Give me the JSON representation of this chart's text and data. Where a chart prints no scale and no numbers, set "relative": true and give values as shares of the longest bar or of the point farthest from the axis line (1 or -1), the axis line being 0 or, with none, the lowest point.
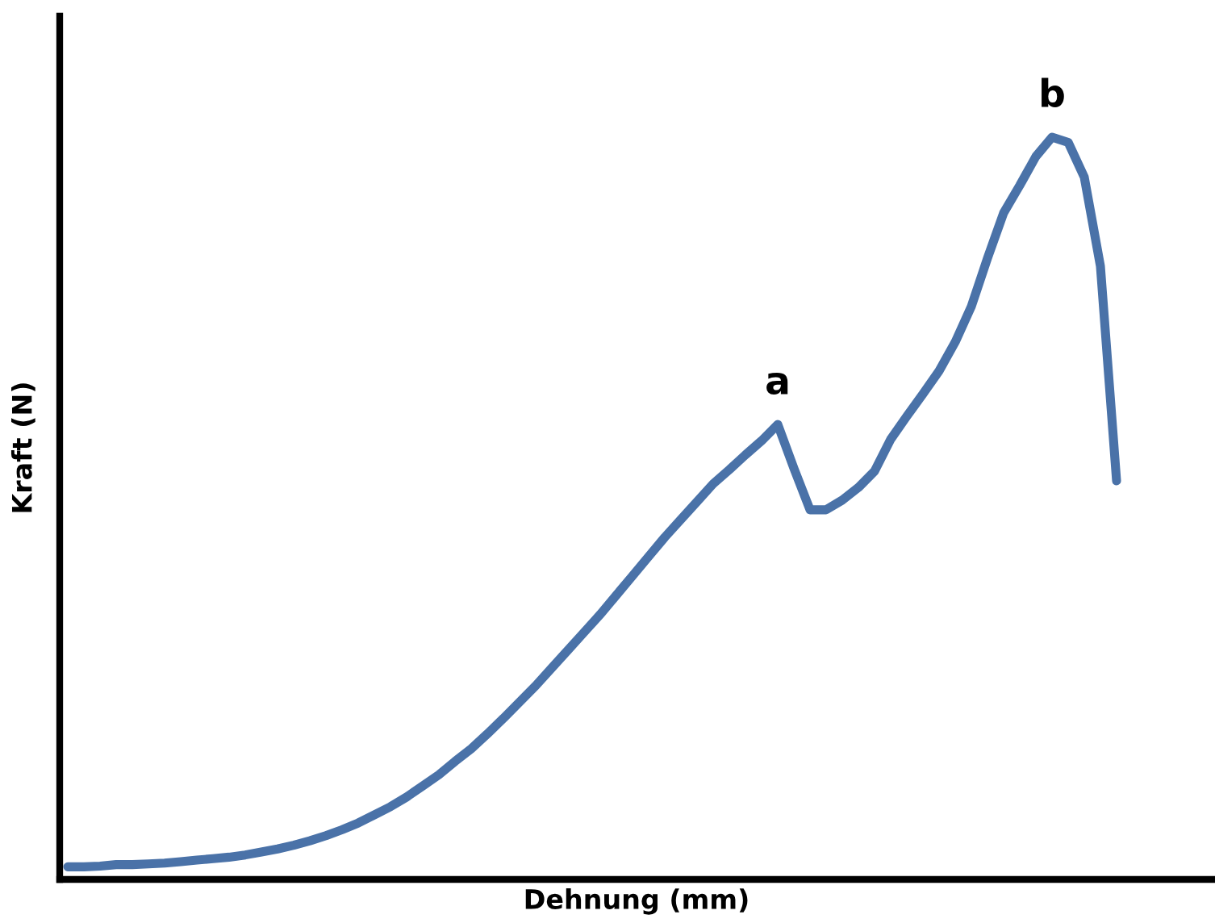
{
  "chart_data": {
    "type": "line",
    "relative": true,
    "xlabel": "Dehnung (mm)",
    "ylabel": "Kraft (N)",
    "grid": false,
    "legend": false,
    "marker": "none",
    "line_style": "solid",
    "tick_labels": false,
    "categories": [
      null,
      null,
      null,
      null,
      null,
      null,
      null,
      null,
      null,
      null,
      null,
      null,
      null,
      null,
      null,
      null,
      null,
      null,
      null,
      null,
      null,
      null,
      null,
      null,
      null,
      null,
      null,
      null,
      null,
      null,
      null,
      null,
      null,
      null,
      null,
      null,
      null,
      null,
      null,
      null,
      null,
      null,
      null,
      null,
      null,
      null,
      null,
      null,
      null,
      null,
      null,
      null,
      null,
      null,
      null,
      null,
      null,
      null,
      null,
      null,
      null,
      null,
      null,
      null,
      null,
      null
    ],
    "series": [
      {
        "color": "#4a72a8",
        "values": [
          0.017,
          0.017,
          0.018,
          0.02,
          0.02,
          0.021,
          0.022,
          0.024,
          0.026,
          0.028,
          0.03,
          0.033,
          0.037,
          0.041,
          0.046,
          0.052,
          0.059,
          0.067,
          0.076,
          0.087,
          0.098,
          0.111,
          0.126,
          0.141,
          0.159,
          0.176,
          0.196,
          0.217,
          0.239,
          0.261,
          0.285,
          0.309,
          0.333,
          0.357,
          0.383,
          0.409,
          0.435,
          0.461,
          0.485,
          0.509,
          0.533,
          0.552,
          0.572,
          0.591,
          0.613,
          0.554,
          0.498,
          0.498,
          0.511,
          0.528,
          0.55,
          0.593,
          0.624,
          0.654,
          0.685,
          0.724,
          0.772,
          0.837,
          0.898,
          0.935,
          0.974,
          1.0,
          0.993,
          0.946,
          0.826,
          0.537
        ]
      }
    ],
    "annotations": [
      {
        "text": "a",
        "y": 0.613
      },
      {
        "text": "b",
        "y": 1.0
      }
    ]
  }
}
